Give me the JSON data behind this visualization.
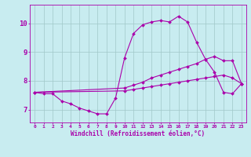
{
  "background_color": "#c8ecf0",
  "grid_color": "#a0c8c8",
  "line_color": "#aa00aa",
  "marker_color": "#aa00aa",
  "xlabel": "Windchill (Refroidissement éolien,°C)",
  "ylabel_ticks": [
    7,
    8,
    9,
    10
  ],
  "xlim": [
    -0.5,
    23.5
  ],
  "ylim": [
    6.55,
    10.65
  ],
  "xticks": [
    0,
    1,
    2,
    3,
    4,
    5,
    6,
    7,
    8,
    9,
    10,
    11,
    12,
    13,
    14,
    15,
    16,
    17,
    18,
    19,
    20,
    21,
    22,
    23
  ],
  "series": [
    {
      "x": [
        0,
        1,
        2,
        3,
        4,
        5,
        6,
        7,
        8,
        9,
        10,
        11,
        12,
        13,
        14,
        15,
        16,
        17,
        18,
        19,
        20,
        21,
        22,
        23
      ],
      "y": [
        7.6,
        7.55,
        7.55,
        7.3,
        7.2,
        7.05,
        6.95,
        6.85,
        6.85,
        7.4,
        8.8,
        9.65,
        9.95,
        10.05,
        10.1,
        10.05,
        10.25,
        10.05,
        9.35,
        8.75,
        8.3,
        7.6,
        7.55,
        7.9
      ]
    },
    {
      "x": [
        0,
        10,
        11,
        12,
        13,
        14,
        15,
        16,
        17,
        18,
        19,
        20,
        21,
        22,
        23
      ],
      "y": [
        7.6,
        7.75,
        7.85,
        7.95,
        8.1,
        8.2,
        8.3,
        8.4,
        8.5,
        8.6,
        8.75,
        8.85,
        8.7,
        8.7,
        7.9
      ]
    },
    {
      "x": [
        0,
        10,
        11,
        12,
        13,
        14,
        15,
        16,
        17,
        18,
        19,
        20,
        21,
        22,
        23
      ],
      "y": [
        7.6,
        7.65,
        7.7,
        7.75,
        7.8,
        7.85,
        7.9,
        7.95,
        8.0,
        8.05,
        8.1,
        8.15,
        8.2,
        8.1,
        7.9
      ]
    }
  ]
}
